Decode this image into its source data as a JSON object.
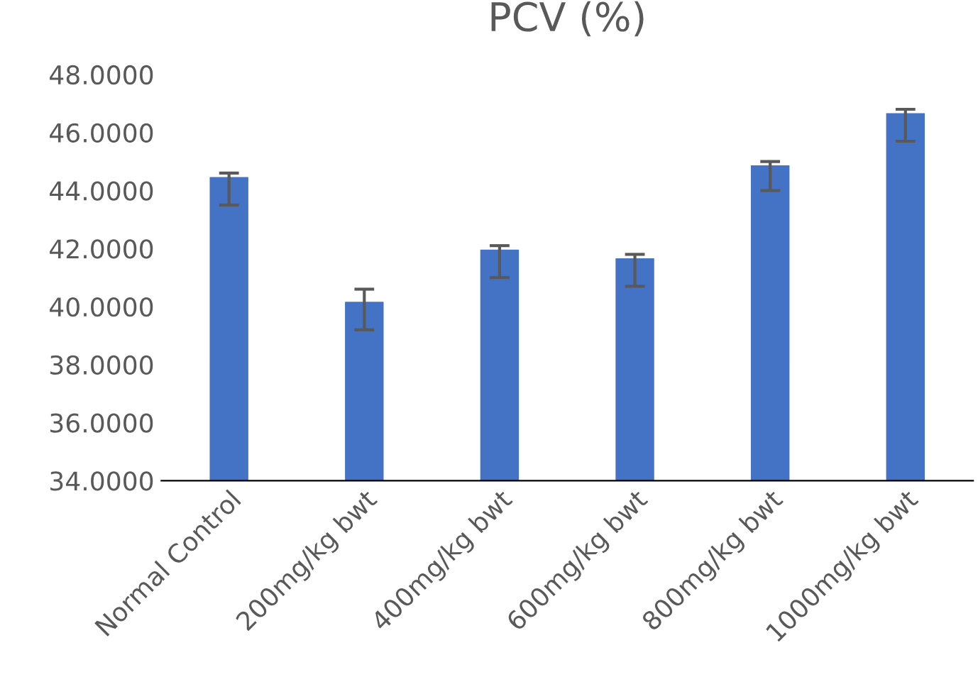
{
  "chart_data": {
    "type": "bar",
    "title": "PCV (%)",
    "categories": [
      "Normal Control",
      "200mg/kg bwt",
      "400mg/kg bwt",
      "600mg/kg bwt",
      "800mg/kg bwt",
      "1000mg/kg bwt"
    ],
    "values": [
      44.5,
      40.2,
      42.0,
      41.7,
      44.9,
      46.7
    ],
    "errors": [
      [
        43.5,
        44.6
      ],
      [
        39.2,
        40.6
      ],
      [
        41.0,
        42.1
      ],
      [
        40.7,
        41.8
      ],
      [
        44.0,
        45.0
      ],
      [
        45.7,
        46.8
      ]
    ],
    "color": "#4472c4",
    "ylim": [
      34,
      48
    ],
    "yticks": [
      {
        "value": 34,
        "label": "34.0000"
      },
      {
        "value": 36,
        "label": "36.0000"
      },
      {
        "value": 38,
        "label": "38.0000"
      },
      {
        "value": 40,
        "label": "40.0000"
      },
      {
        "value": 42,
        "label": "42.0000"
      },
      {
        "value": 44,
        "label": "44.0000"
      },
      {
        "value": 46,
        "label": "46.0000"
      },
      {
        "value": 48,
        "label": "48.0000"
      }
    ],
    "grid": false
  }
}
